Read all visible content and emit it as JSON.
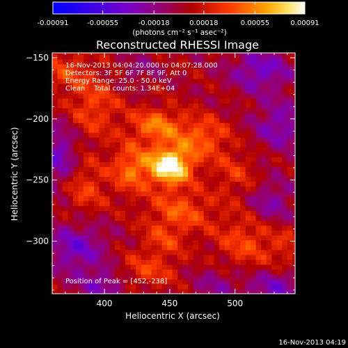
{
  "chart_data": {
    "type": "heatmap",
    "title": "Reconstructed RHESSI Image",
    "xlabel": "Heliocentric X (arcsec)",
    "ylabel": "Heliocentric Y (arcsec)",
    "xlim": [
      360,
      546
    ],
    "ylim": [
      -343,
      -146
    ],
    "xticks": [
      400,
      450,
      500
    ],
    "yticks": [
      -150,
      -200,
      -250,
      -300
    ],
    "colorbar": {
      "range": [
        -0.00091,
        0.00091
      ],
      "ticks": [
        "-0.00091",
        "-0.00055",
        "-0.00018",
        "0.00018",
        "0.00055",
        "0.00091"
      ],
      "unit_label": "(photons cm⁻² s⁻¹ asec⁻²)",
      "colors": [
        "#0000ff",
        "#7a00c8",
        "#b00000",
        "#ff3a00",
        "#ffa500",
        "#ffffff"
      ]
    },
    "annotations": [
      "16-Nov-2013 04:04:20.000 to 04:07:28.000",
      "Detectors: 3F 5F 6F 7F 8F 9F, Att 0",
      "Energy Range: 25.0 - 50.0 keV",
      "Clean    Total counts: 1.34E+04"
    ],
    "peak": {
      "label": "Position of Peak = [452,-238]",
      "x": 452,
      "y": -238
    },
    "blobs": [
      {
        "x": 450,
        "y": -238,
        "amp": 0.00091,
        "sx": 12,
        "sy": 11
      },
      {
        "x": 440,
        "y": -205,
        "amp": 0.00045,
        "sx": 14,
        "sy": 10
      },
      {
        "x": 420,
        "y": -240,
        "amp": 0.00042,
        "sx": 10,
        "sy": 14
      },
      {
        "x": 475,
        "y": -215,
        "amp": 0.00038,
        "sx": 14,
        "sy": 12
      },
      {
        "x": 458,
        "y": -275,
        "amp": 0.00035,
        "sx": 18,
        "sy": 12
      },
      {
        "x": 392,
        "y": -190,
        "amp": 0.0003,
        "sx": 14,
        "sy": 18
      },
      {
        "x": 385,
        "y": -255,
        "amp": 0.00028,
        "sx": 12,
        "sy": 16
      },
      {
        "x": 508,
        "y": -300,
        "amp": 0.0003,
        "sx": 16,
        "sy": 16
      },
      {
        "x": 430,
        "y": -325,
        "amp": 0.00028,
        "sx": 18,
        "sy": 10
      },
      {
        "x": 445,
        "y": -300,
        "amp": 0.00024,
        "sx": 12,
        "sy": 10
      },
      {
        "x": 370,
        "y": -160,
        "amp": 0.00026,
        "sx": 14,
        "sy": 12
      },
      {
        "x": 500,
        "y": -245,
        "amp": 0.00022,
        "sx": 12,
        "sy": 14
      },
      {
        "x": 540,
        "y": -305,
        "amp": 0.00018,
        "sx": 10,
        "sy": 12
      },
      {
        "x": 520,
        "y": -160,
        "amp": -0.0004,
        "sx": 16,
        "sy": 12
      },
      {
        "x": 535,
        "y": -205,
        "amp": -0.00035,
        "sx": 14,
        "sy": 14
      },
      {
        "x": 365,
        "y": -230,
        "amp": -0.0004,
        "sx": 10,
        "sy": 18
      },
      {
        "x": 378,
        "y": -305,
        "amp": -0.0004,
        "sx": 16,
        "sy": 14
      },
      {
        "x": 400,
        "y": -335,
        "amp": -0.00035,
        "sx": 14,
        "sy": 10
      },
      {
        "x": 528,
        "y": -268,
        "amp": -0.0003,
        "sx": 12,
        "sy": 12
      },
      {
        "x": 530,
        "y": -338,
        "amp": -0.00035,
        "sx": 16,
        "sy": 10
      },
      {
        "x": 485,
        "y": -335,
        "amp": -0.00022,
        "sx": 12,
        "sy": 10
      },
      {
        "x": 425,
        "y": -160,
        "amp": -0.00018,
        "sx": 10,
        "sy": 8
      }
    ]
  },
  "footer": {
    "timestamp": "16-Nov-2013 04:19"
  }
}
